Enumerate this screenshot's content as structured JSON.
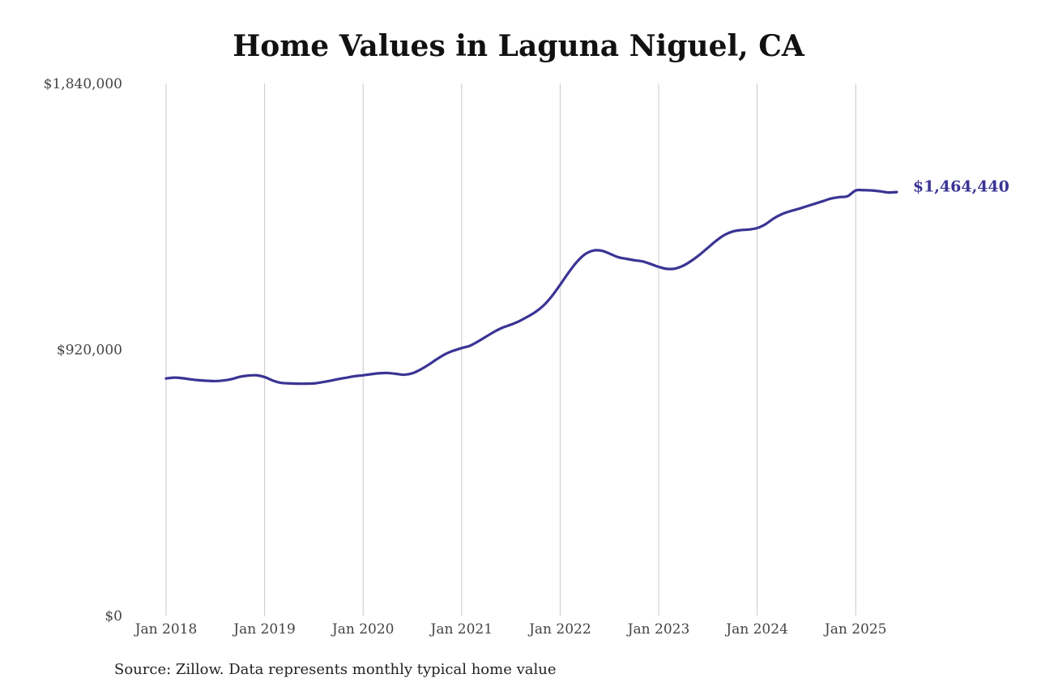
{
  "chart_data": {
    "type": "line",
    "title": "Home Values in Laguna Niguel, CA",
    "xlabel": "",
    "ylabel": "",
    "ylim": [
      0,
      1840000
    ],
    "yticks": [
      {
        "value": 0,
        "label": "$0"
      },
      {
        "value": 920000,
        "label": "$920,000"
      },
      {
        "value": 1840000,
        "label": "$1,840,000"
      }
    ],
    "xticks": [
      "Jan 2018",
      "Jan 2019",
      "Jan 2020",
      "Jan 2021",
      "Jan 2022",
      "Jan 2023",
      "Jan 2024",
      "Jan 2025"
    ],
    "grid": "vertical",
    "series": [
      {
        "color": "#3b3494",
        "x": [
          "2018-01",
          "2018-02",
          "2018-03",
          "2018-04",
          "2018-05",
          "2018-06",
          "2018-07",
          "2018-08",
          "2018-09",
          "2018-10",
          "2018-11",
          "2018-12",
          "2019-01",
          "2019-02",
          "2019-03",
          "2019-04",
          "2019-05",
          "2019-06",
          "2019-07",
          "2019-08",
          "2019-09",
          "2019-10",
          "2019-11",
          "2019-12",
          "2020-01",
          "2020-02",
          "2020-03",
          "2020-04",
          "2020-05",
          "2020-06",
          "2020-07",
          "2020-08",
          "2020-09",
          "2020-10",
          "2020-11",
          "2020-12",
          "2021-01",
          "2021-02",
          "2021-03",
          "2021-04",
          "2021-05",
          "2021-06",
          "2021-07",
          "2021-08",
          "2021-09",
          "2021-10",
          "2021-11",
          "2021-12",
          "2022-01",
          "2022-02",
          "2022-03",
          "2022-04",
          "2022-05",
          "2022-06",
          "2022-07",
          "2022-08",
          "2022-09",
          "2022-10",
          "2022-11",
          "2022-12",
          "2023-01",
          "2023-02",
          "2023-03",
          "2023-04",
          "2023-05",
          "2023-06",
          "2023-07",
          "2023-08",
          "2023-09",
          "2023-10",
          "2023-11",
          "2023-12",
          "2024-01",
          "2024-02",
          "2024-03",
          "2024-04",
          "2024-05",
          "2024-06",
          "2024-07",
          "2024-08",
          "2024-09",
          "2024-10",
          "2024-11",
          "2024-12",
          "2025-01",
          "2025-02",
          "2025-03",
          "2025-04",
          "2025-05",
          "2025-06"
        ],
        "values": [
          820000,
          823000,
          821000,
          817000,
          814000,
          812000,
          811000,
          813000,
          818000,
          826000,
          830000,
          831000,
          825000,
          813000,
          805000,
          803000,
          802000,
          802000,
          803000,
          807000,
          812000,
          818000,
          823000,
          828000,
          831000,
          835000,
          838000,
          839000,
          836000,
          833000,
          838000,
          851000,
          868000,
          887000,
          904000,
          916000,
          925000,
          933000,
          948000,
          965000,
          982000,
          996000,
          1006000,
          1018000,
          1033000,
          1050000,
          1073000,
          1105000,
          1144000,
          1185000,
          1222000,
          1249000,
          1262000,
          1262000,
          1252000,
          1240000,
          1234000,
          1229000,
          1225000,
          1216000,
          1206000,
          1199000,
          1200000,
          1210000,
          1227000,
          1248000,
          1272000,
          1296000,
          1316000,
          1328000,
          1333000,
          1335000,
          1340000,
          1353000,
          1373000,
          1388000,
          1398000,
          1406000,
          1415000,
          1424000,
          1433000,
          1442000,
          1447000,
          1450000,
          1470000,
          1471000,
          1470000,
          1467000,
          1463000,
          1464440
        ]
      }
    ],
    "annotations": [
      {
        "text": "$1,464,440"
      }
    ]
  },
  "source_note": "Source: Zillow. Data represents monthly typical home value"
}
